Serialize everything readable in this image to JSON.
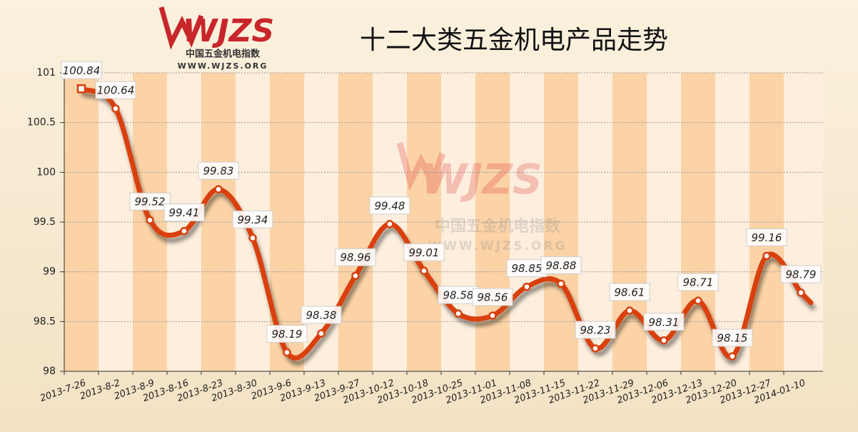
{
  "logo": {
    "mark": "WJZS",
    "name": "中国五金机电指数",
    "url": "WWW.WJZS.ORG"
  },
  "chart_data": {
    "type": "line",
    "title": "十二大类五金机电产品走势",
    "categories": [
      "2013-7-26",
      "2013-8-2",
      "2013-8-9",
      "2013-8-16",
      "2013-8-23",
      "2013-8-30",
      "2013-9-6",
      "2013-9-13",
      "2013-9-27",
      "2013-10-12",
      "2013-10-18",
      "2013-10-25",
      "2013-11-01",
      "2013-11-08",
      "2013-11-15",
      "2013-11-22",
      "2013-11-29",
      "2013-12-06",
      "2013-12-13",
      "2013-12-20",
      "2013-12-27",
      "2014-01-10"
    ],
    "values": [
      100.84,
      100.64,
      99.52,
      99.41,
      99.83,
      99.34,
      98.19,
      98.38,
      98.96,
      99.48,
      99.01,
      98.58,
      98.56,
      98.85,
      98.88,
      98.23,
      98.61,
      98.31,
      98.71,
      98.15,
      99.16,
      98.79
    ],
    "color": "#d9400f",
    "ylim": [
      98,
      101
    ],
    "yticks": [
      98,
      98.5,
      99,
      99.5,
      100,
      100.5,
      101
    ],
    "grid": true
  }
}
